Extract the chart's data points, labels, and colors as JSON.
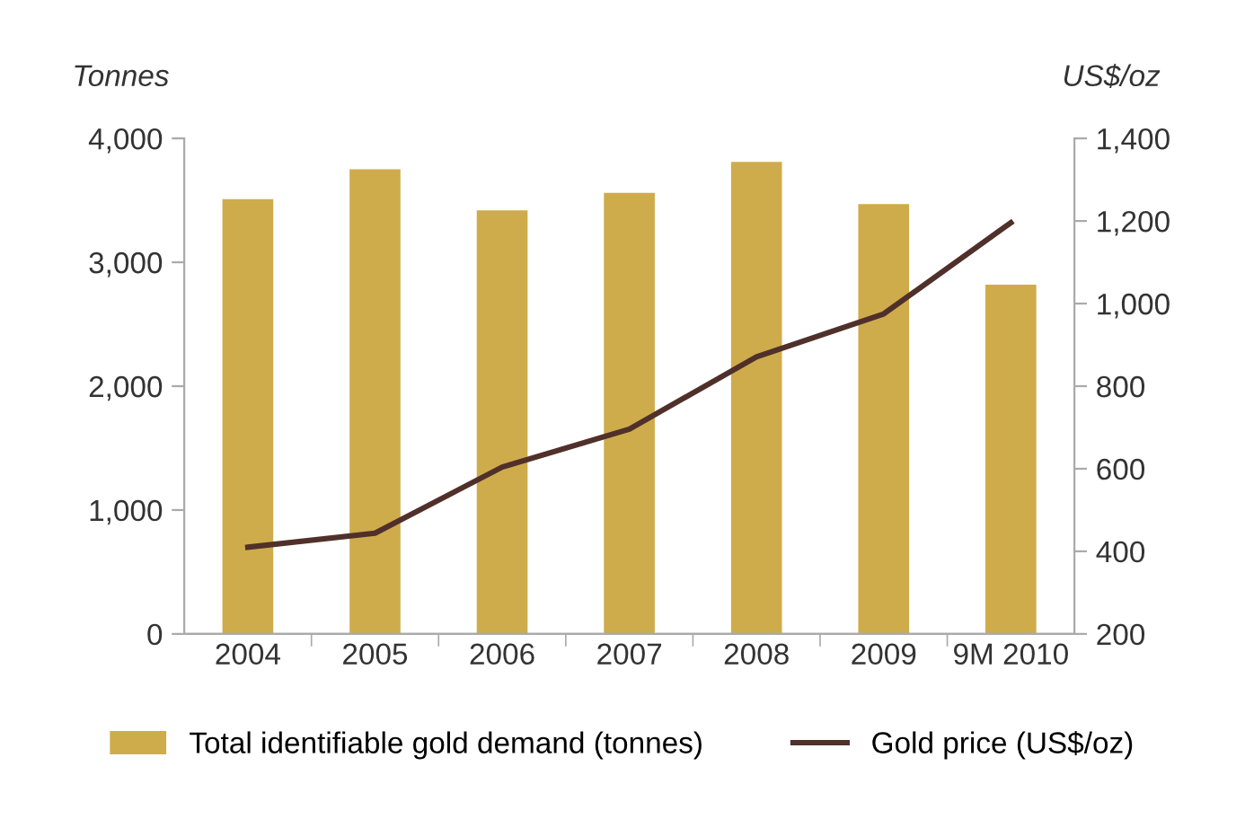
{
  "chart_data": {
    "type": "bar",
    "ylabel": "Tonnes",
    "y2label": "US$/oz",
    "categories": [
      "2004",
      "2005",
      "2006",
      "2007",
      "2008",
      "2009",
      "9M 2010"
    ],
    "series": [
      {
        "name": "Total identifiable gold demand (tonnes)",
        "color": "#cfac4b",
        "values": [
          3510,
          3750,
          3420,
          3560,
          3810,
          3470,
          2820
        ]
      },
      {
        "name": "Gold price (US$/oz)",
        "type": "line",
        "axis": "y2",
        "color": "#50302a",
        "values": [
          410,
          444,
          604,
          696,
          871,
          975,
          1196
        ]
      }
    ],
    "ylim": [
      0,
      4000
    ],
    "yticks": [
      {
        "value": 0,
        "label": "0"
      },
      {
        "value": 1000,
        "label": "1,000"
      },
      {
        "value": 2000,
        "label": "2,000"
      },
      {
        "value": 3000,
        "label": "3,000"
      },
      {
        "value": 4000,
        "label": "4,000"
      }
    ],
    "y2lim": [
      200,
      1400
    ],
    "y2ticks": [
      {
        "value": 200,
        "label": "200"
      },
      {
        "value": 400,
        "label": "400"
      },
      {
        "value": 600,
        "label": "600"
      },
      {
        "value": 800,
        "label": "800"
      },
      {
        "value": 1000,
        "label": "1,000"
      },
      {
        "value": 1200,
        "label": "1,200"
      },
      {
        "value": 1400,
        "label": "1,400"
      }
    ],
    "grid": false,
    "legend": "bottom",
    "marker": "none",
    "line_style": "solid"
  }
}
